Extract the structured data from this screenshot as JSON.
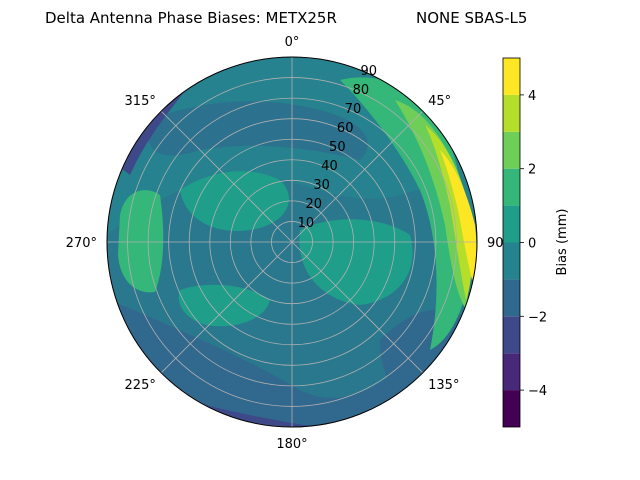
{
  "chart_data": {
    "type": "polar-contour",
    "title": "Delta Antenna Phase Biases: METX25R",
    "subtitle": "NONE SBAS-L5",
    "radial_ticks": [
      10,
      20,
      30,
      40,
      50,
      60,
      70,
      80,
      90
    ],
    "radial_range": [
      0,
      90
    ],
    "angular_tick_labels": [
      "0°",
      "45°",
      "90",
      "135°",
      "180°",
      "225°",
      "270°",
      "315°"
    ],
    "angular_tick_angles": [
      0,
      45,
      90,
      135,
      180,
      225,
      270,
      315
    ],
    "angular_direction": "clockwise",
    "zero_location": "top",
    "grid": true,
    "colorbar": {
      "label": "Bias (mm)",
      "range": [
        -5,
        5
      ],
      "levels": [
        -5,
        -4,
        -3,
        -2,
        -1,
        0,
        1,
        2,
        3,
        4,
        5
      ],
      "tick_values": [
        -4,
        -2,
        0,
        2,
        4
      ],
      "tick_labels": [
        "−4",
        "−2",
        "0",
        "2",
        "4"
      ],
      "colors": [
        "#440154",
        "#482878",
        "#3e4989",
        "#31688e",
        "#26828e",
        "#1f9e89",
        "#35b779",
        "#6ece58",
        "#b5de2b",
        "#fde725"
      ],
      "placement": "right"
    }
  }
}
